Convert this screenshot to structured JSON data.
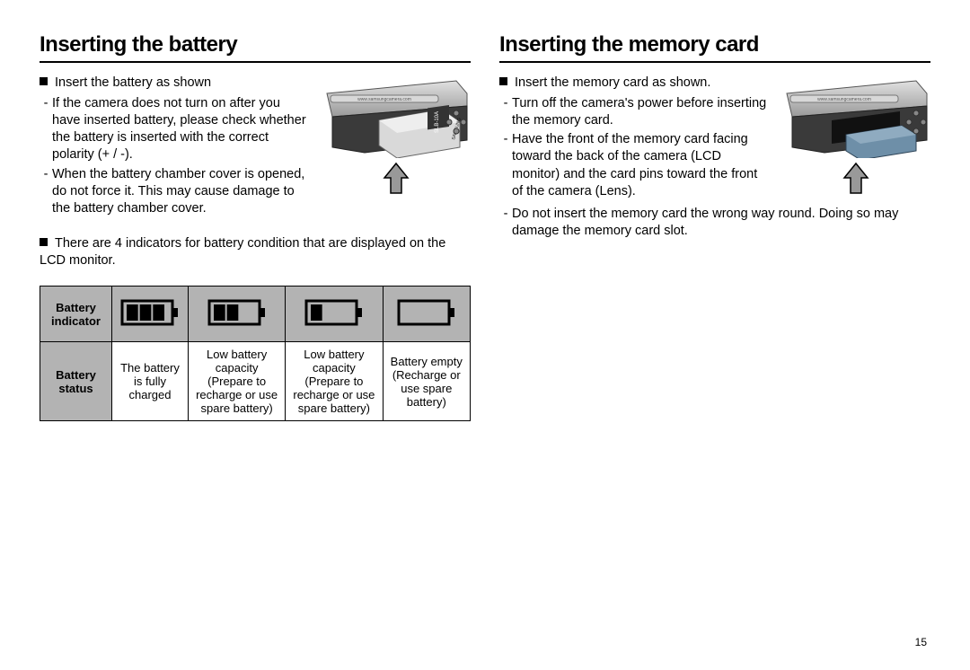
{
  "page_number": "15",
  "left": {
    "title": "Inserting the battery",
    "intro": "Insert the battery as shown",
    "bullets": [
      "If the camera does not turn on after you have inserted battery, please check whether the battery is inserted with the correct polarity (+ / -).",
      "When the battery chamber cover is opened, do not force it. This may cause damage to the battery chamber cover."
    ],
    "note": "There are 4 indicators for battery condition that are displayed on the LCD monitor.",
    "table": {
      "header_indicator": "Battery indicator",
      "header_status": "Battery status",
      "levels": [
        3,
        2,
        1,
        0
      ],
      "status": [
        "The battery is fully charged",
        "Low battery capacity (Prepare to recharge or use spare battery)",
        "Low battery capacity (Prepare to recharge or use spare battery)",
        "Battery empty (Recharge or use spare battery)"
      ],
      "icon": {
        "width": 60,
        "height": 30,
        "body_stroke_width": 3,
        "segment_count": 3,
        "colors": {
          "stroke": "#000000",
          "fill": "#000000",
          "bg": "#b3b3b3"
        }
      }
    },
    "illustration": {
      "camera_text": "www.samsungcamera.com",
      "battery_label": "SLB-10A",
      "brand": "SAMSUNG",
      "colors": {
        "body_top": "#b8b8b8",
        "body_bot": "#3a3a3a",
        "battery": "#d9d9d9",
        "label": "#222"
      }
    }
  },
  "right": {
    "title": "Inserting the memory card",
    "intro": "Insert the memory card as shown.",
    "bullets": [
      "Turn off the camera's power before inserting the memory card.",
      "Have the front of the memory card facing toward the back of the camera (LCD monitor) and the card pins toward the front of the camera (Lens).",
      "Do not insert the memory card the wrong way round. Doing so may damage the memory card slot."
    ],
    "illustration": {
      "camera_text": "www.samsungcamera.com",
      "colors": {
        "body_top": "#b8b8b8",
        "body_bot": "#3a3a3a",
        "card": "#6e8fa8"
      }
    }
  },
  "arrow": {
    "fill": "#999999",
    "stroke": "#000000"
  }
}
